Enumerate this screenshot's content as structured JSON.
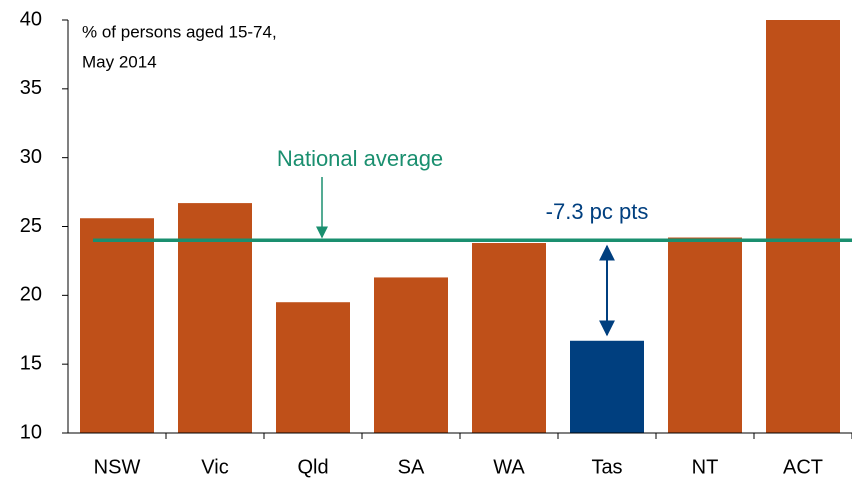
{
  "chart_data": {
    "type": "bar",
    "subtitle_lines": [
      "% of persons aged 15-74,",
      "May 2014"
    ],
    "categories": [
      "NSW",
      "Vic",
      "Qld",
      "SA",
      "WA",
      "Tas",
      "NT",
      "ACT"
    ],
    "values": [
      25.6,
      26.7,
      19.5,
      21.3,
      23.8,
      16.7,
      24.2,
      40
    ],
    "colors": [
      "#bf5019",
      "#bf5019",
      "#bf5019",
      "#bf5019",
      "#bf5019",
      "#003f7f",
      "#bf5019",
      "#bf5019"
    ],
    "ylim": [
      10,
      40
    ],
    "yticks": [
      10,
      15,
      20,
      25,
      30,
      35,
      40
    ],
    "reference_line": {
      "label": "National average",
      "value": 24.0,
      "color": "#1a8f6f"
    },
    "gap_annotation": {
      "label": "-7.3 pc pts",
      "category_index": 5,
      "color": "#003f7f"
    }
  }
}
